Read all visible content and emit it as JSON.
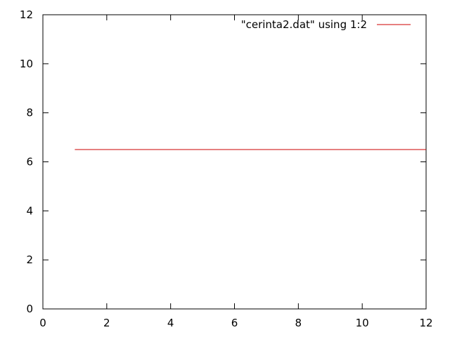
{
  "chart_data": {
    "type": "line",
    "title": "",
    "xlabel": "",
    "ylabel": "",
    "xlim": [
      0,
      12
    ],
    "ylim": [
      0,
      12
    ],
    "xticks": [
      0,
      2,
      4,
      6,
      8,
      10,
      12
    ],
    "yticks": [
      0,
      2,
      4,
      6,
      8,
      10,
      12
    ],
    "grid": false,
    "legend_position": "top-right",
    "series": [
      {
        "name": "\"cerinta2.dat\" using 1:2",
        "color": "#cc0000",
        "x": [
          1,
          12
        ],
        "y": [
          6.5,
          6.5
        ]
      }
    ]
  }
}
